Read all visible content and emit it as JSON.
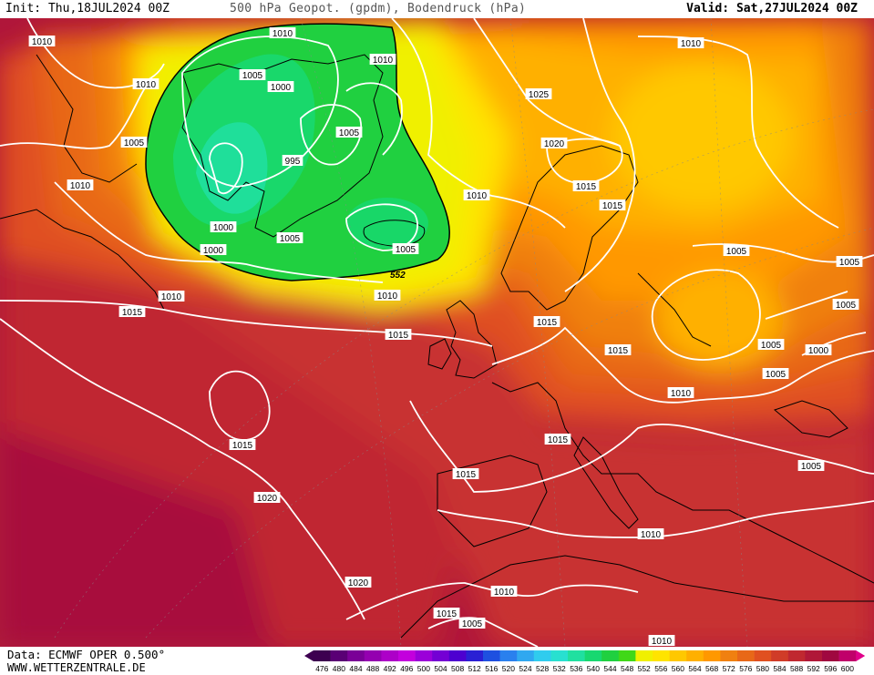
{
  "header": {
    "init": "Init: Thu,18JUL2024 00Z",
    "title": "500 hPa Geopot. (gpdm), Bodendruck (hPa)",
    "valid": "Valid: Sat,27JUL2024 00Z"
  },
  "footer": {
    "data_source": "Data: ECMWF OPER 0.500°",
    "website": "WWW.WETTERZENTRALE.DE"
  },
  "legend": {
    "values": [
      "476",
      "480",
      "484",
      "488",
      "492",
      "496",
      "500",
      "504",
      "508",
      "512",
      "516",
      "520",
      "524",
      "528",
      "532",
      "536",
      "540",
      "544",
      "548",
      "552",
      "556",
      "560",
      "564",
      "568",
      "572",
      "576",
      "580",
      "584",
      "588",
      "592",
      "596",
      "600"
    ],
    "colors": [
      "#3d0050",
      "#5a0075",
      "#7a0097",
      "#9400b0",
      "#ad00c8",
      "#c300dd",
      "#9b00d9",
      "#7400d4",
      "#4d00d0",
      "#2a20d4",
      "#1e50e0",
      "#2a80ee",
      "#30a8f0",
      "#30ccee",
      "#28e0d0",
      "#20e0a0",
      "#18d870",
      "#20d040",
      "#40d818",
      "#f0f000",
      "#ffe400",
      "#ffc800",
      "#ffb000",
      "#ff9800",
      "#f08010",
      "#e86818",
      "#e05020",
      "#d03c28",
      "#c02830",
      "#b01838",
      "#a00840",
      "#c0006a"
    ]
  },
  "map": {
    "contour_color": "#ffffff",
    "isobar_labels": [
      "1010",
      "1010",
      "1010",
      "1005",
      "1010",
      "1005",
      "1000",
      "995",
      "1000",
      "1005",
      "1010",
      "1005",
      "1000",
      "1005",
      "1010",
      "1010",
      "1025",
      "1020",
      "1010",
      "1015",
      "1015",
      "1015",
      "1015",
      "1010",
      "1005",
      "1005",
      "1005",
      "1005",
      "1000",
      "1005",
      "1010",
      "1015",
      "1015",
      "1015",
      "1020",
      "1015",
      "1005",
      "1010",
      "1010",
      "1015",
      "1005",
      "1010",
      "1020",
      "1015"
    ],
    "geopotential_label": "552"
  }
}
